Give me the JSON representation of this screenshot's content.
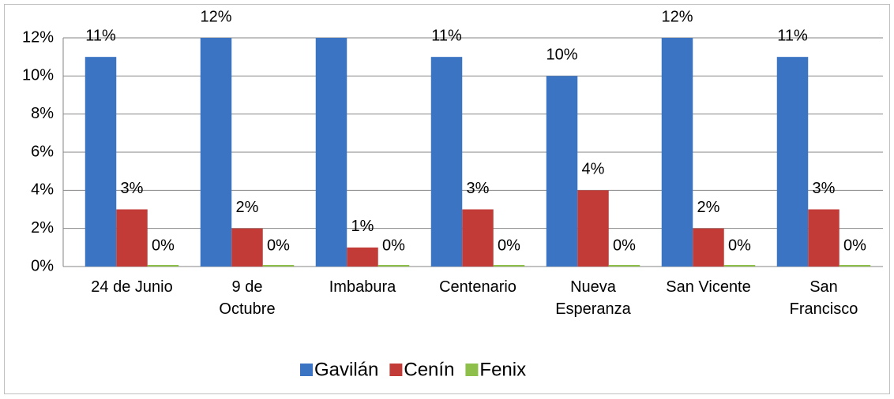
{
  "chart_data": {
    "type": "bar",
    "categories": [
      "24 de Junio",
      "9 de\nOctubre",
      "Imbabura",
      "Centenario",
      "Nueva\nEsperanza",
      "San Vicente",
      "San\nFrancisco"
    ],
    "series": [
      {
        "name": "Gavilán",
        "color": "#3b74c2",
        "values": [
          11,
          12,
          12,
          11,
          10,
          12,
          11
        ],
        "value_labels": [
          "11%",
          "12%",
          null,
          "11%",
          "10%",
          "12%",
          "11%"
        ]
      },
      {
        "name": "Cenín",
        "color": "#c33b37",
        "values": [
          3,
          2,
          1,
          3,
          4,
          2,
          3
        ],
        "value_labels": [
          "3%",
          "2%",
          "1%",
          "3%",
          "4%",
          "2%",
          "3%"
        ]
      },
      {
        "name": "Fenix",
        "color": "#8dbf4a",
        "values": [
          0,
          0,
          0,
          0,
          0,
          0,
          0
        ],
        "value_labels": [
          "0%",
          "0%",
          "0%",
          "0%",
          "0%",
          "0%",
          "0%"
        ]
      }
    ],
    "ylim": [
      0,
      12
    ],
    "yticks": [
      {
        "value": 0,
        "label": "0%"
      },
      {
        "value": 2,
        "label": "2%"
      },
      {
        "value": 4,
        "label": "4%"
      },
      {
        "value": 6,
        "label": "6%"
      },
      {
        "value": 8,
        "label": "8%"
      },
      {
        "value": 10,
        "label": "10%"
      },
      {
        "value": 12,
        "label": "12%"
      }
    ],
    "grid": true,
    "legend": "bottom"
  }
}
